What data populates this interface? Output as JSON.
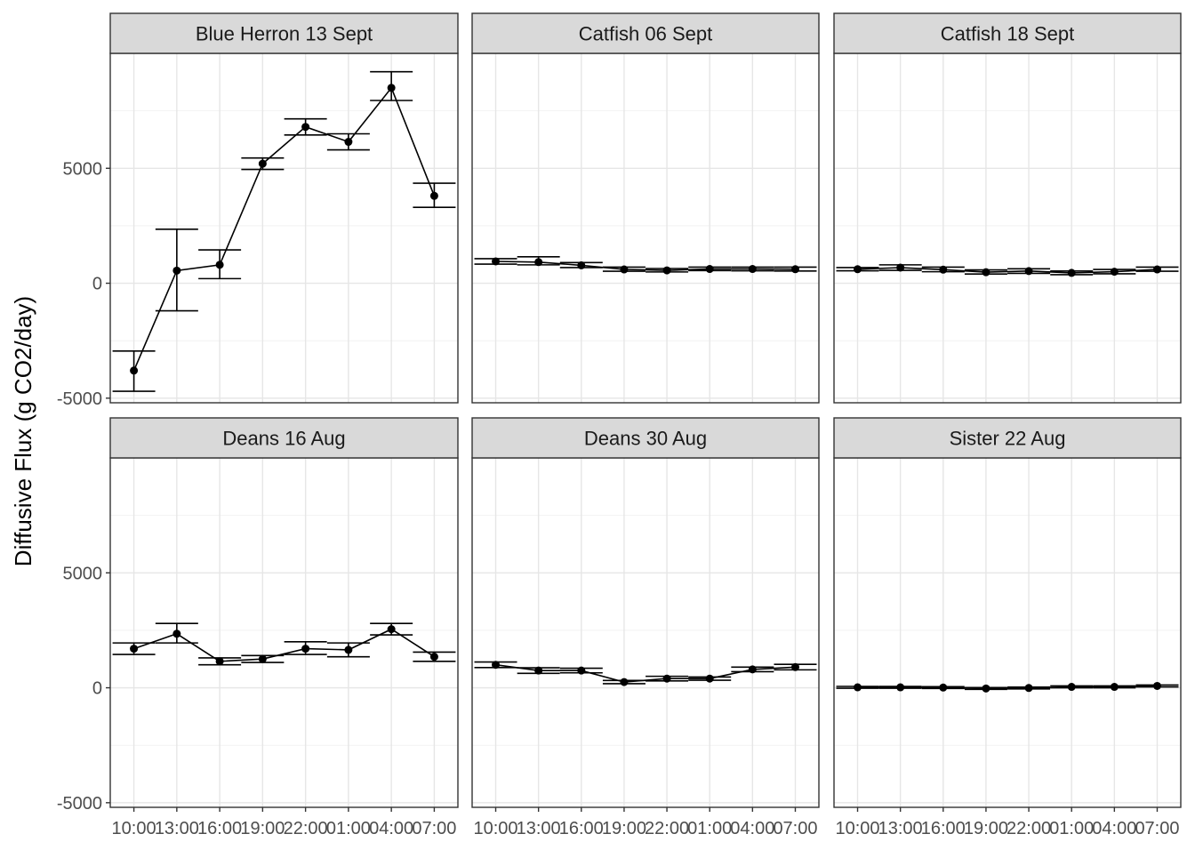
{
  "chart_data": {
    "type": "line",
    "ylabel": "Diffusive Flux (g CO2/day)",
    "xlabel": "",
    "ylim": [
      -5200,
      10000
    ],
    "yticks": [
      -5000,
      0,
      5000
    ],
    "categories": [
      "10:00",
      "13:00",
      "16:00",
      "19:00",
      "22:00",
      "01:00",
      "04:00",
      "07:00"
    ],
    "error_bars": true,
    "grid": true,
    "panels": [
      {
        "title": "Blue Herron 13 Sept",
        "values": [
          -3800,
          550,
          800,
          5200,
          6800,
          6150,
          8500,
          3800
        ],
        "lower": [
          -4700,
          -1200,
          200,
          4950,
          6450,
          5800,
          7950,
          3300
        ],
        "upper": [
          -2950,
          2350,
          1450,
          5450,
          7150,
          6500,
          9200,
          4350
        ]
      },
      {
        "title": "Catfish 06 Sept",
        "values": [
          950,
          920,
          780,
          600,
          560,
          620,
          620,
          610
        ],
        "lower": [
          830,
          800,
          680,
          520,
          490,
          550,
          540,
          530
        ],
        "upper": [
          1070,
          1150,
          900,
          700,
          640,
          700,
          700,
          700
        ]
      },
      {
        "title": "Catfish 18 Sept",
        "values": [
          610,
          680,
          590,
          480,
          530,
          450,
          500,
          600
        ],
        "lower": [
          540,
          560,
          500,
          400,
          430,
          370,
          410,
          520
        ],
        "upper": [
          680,
          800,
          700,
          580,
          630,
          530,
          600,
          700
        ]
      },
      {
        "title": "Deans 16 Aug",
        "values": [
          1700,
          2350,
          1150,
          1250,
          1700,
          1650,
          2550,
          1350
        ],
        "lower": [
          1450,
          1950,
          1000,
          1100,
          1450,
          1350,
          2300,
          1150
        ],
        "upper": [
          1950,
          2800,
          1300,
          1400,
          2000,
          1950,
          2800,
          1550
        ]
      },
      {
        "title": "Deans 30 Aug",
        "values": [
          1000,
          750,
          750,
          250,
          400,
          400,
          800,
          900
        ],
        "lower": [
          880,
          630,
          650,
          180,
          300,
          330,
          700,
          780
        ],
        "upper": [
          1120,
          870,
          850,
          320,
          500,
          470,
          900,
          1020
        ]
      },
      {
        "title": "Sister 22 Aug",
        "values": [
          20,
          20,
          10,
          -30,
          -10,
          40,
          40,
          80
        ],
        "lower": [
          -20,
          -20,
          -30,
          -70,
          -50,
          0,
          0,
          40
        ],
        "upper": [
          60,
          60,
          50,
          10,
          30,
          80,
          80,
          120
        ]
      }
    ]
  }
}
